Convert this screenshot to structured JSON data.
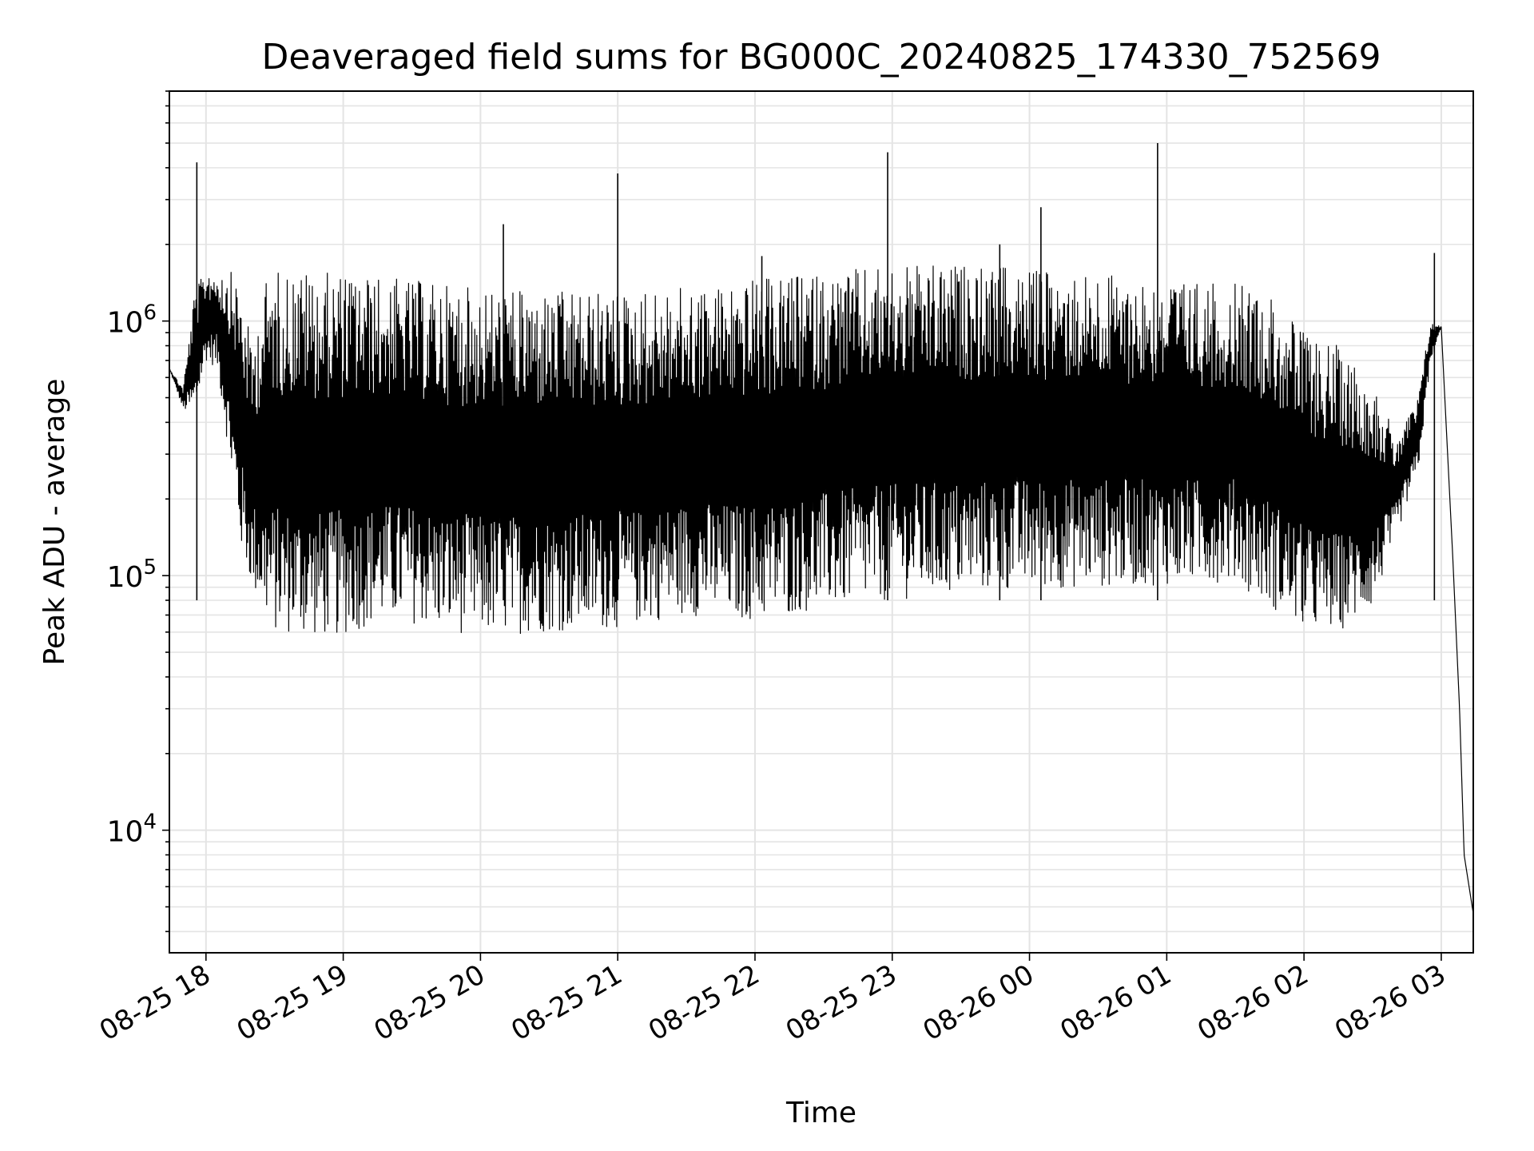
{
  "chart_data": {
    "type": "line",
    "title": "Deaveraged field sums for BG000C_20240825_174330_752569",
    "xlabel": "Time",
    "ylabel": "Peak ADU - average",
    "yscale": "log",
    "ylim": [
      3300,
      8000000
    ],
    "xlim": [
      "2024-08-25 17:44",
      "2024-08-26 03:14"
    ],
    "x_ticks": [
      "08-25 18",
      "08-25 19",
      "08-25 20",
      "08-25 21",
      "08-25 22",
      "08-25 23",
      "08-26 00",
      "08-26 01",
      "08-26 02",
      "08-26 03"
    ],
    "y_ticks": [
      "10^4",
      "10^5",
      "10^6"
    ],
    "grid": true,
    "line_color": "#000000",
    "series": [
      {
        "x": [
          "2024-08-25 17:44",
          "2024-08-25 17:50",
          "2024-08-25 17:55",
          "2024-08-25 18:00",
          "2024-08-25 18:05",
          "2024-08-25 18:10",
          "2024-08-25 18:15",
          "2024-08-25 18:20",
          "2024-08-25 18:25",
          "2024-08-25 18:30",
          "2024-08-25 18:40",
          "2024-08-25 18:50",
          "2024-08-25 19:00",
          "2024-08-25 19:15",
          "2024-08-25 19:30",
          "2024-08-25 19:45",
          "2024-08-25 20:00",
          "2024-08-25 20:30",
          "2024-08-25 21:00",
          "2024-08-25 21:30",
          "2024-08-25 22:00",
          "2024-08-25 22:30",
          "2024-08-25 23:00",
          "2024-08-25 23:30",
          "2024-08-26 00:00",
          "2024-08-26 00:30",
          "2024-08-26 01:00",
          "2024-08-26 01:30",
          "2024-08-26 01:45",
          "2024-08-26 02:00",
          "2024-08-26 02:15",
          "2024-08-26 02:30",
          "2024-08-26 02:40",
          "2024-08-26 02:50",
          "2024-08-26 02:55",
          "2024-08-26 03:00",
          "2024-08-26 03:05",
          "2024-08-26 03:08",
          "2024-08-26 03:10",
          "2024-08-26 03:14"
        ],
        "low": [
          650000,
          450000,
          420000,
          700000,
          650000,
          300000,
          130000,
          90000,
          70000,
          60000,
          58000,
          57000,
          58000,
          65000,
          65000,
          60000,
          58000,
          60000,
          62000,
          70000,
          66000,
          74000,
          80000,
          85000,
          88000,
          90000,
          92000,
          95000,
          75000,
          62000,
          60000,
          75000,
          140000,
          260000,
          650000,
          950000,
          120000,
          30000,
          8000,
          4700
        ],
        "high": [
          650000,
          550000,
          1300000,
          1600000,
          1600000,
          1600000,
          1400000,
          800000,
          1400000,
          1600000,
          1600000,
          1550000,
          1550000,
          1500000,
          1450000,
          1400000,
          1350000,
          1300000,
          1300000,
          1350000,
          1450000,
          1550000,
          1650000,
          1650000,
          1600000,
          1550000,
          1450000,
          1400000,
          1300000,
          900000,
          800000,
          600000,
          350000,
          500000,
          1000000,
          950000,
          120000,
          30000,
          8000,
          4700
        ]
      }
    ],
    "spikes": [
      {
        "x": "2024-08-25 17:56",
        "y": 4200000
      },
      {
        "x": "2024-08-25 20:10",
        "y": 2400000
      },
      {
        "x": "2024-08-25 21:00",
        "y": 3800000
      },
      {
        "x": "2024-08-25 22:03",
        "y": 1800000
      },
      {
        "x": "2024-08-25 22:58",
        "y": 4600000
      },
      {
        "x": "2024-08-25 23:47",
        "y": 2000000
      },
      {
        "x": "2024-08-26 00:05",
        "y": 2800000
      },
      {
        "x": "2024-08-26 00:56",
        "y": 5000000
      },
      {
        "x": "2024-08-26 02:57",
        "y": 1850000
      }
    ]
  }
}
